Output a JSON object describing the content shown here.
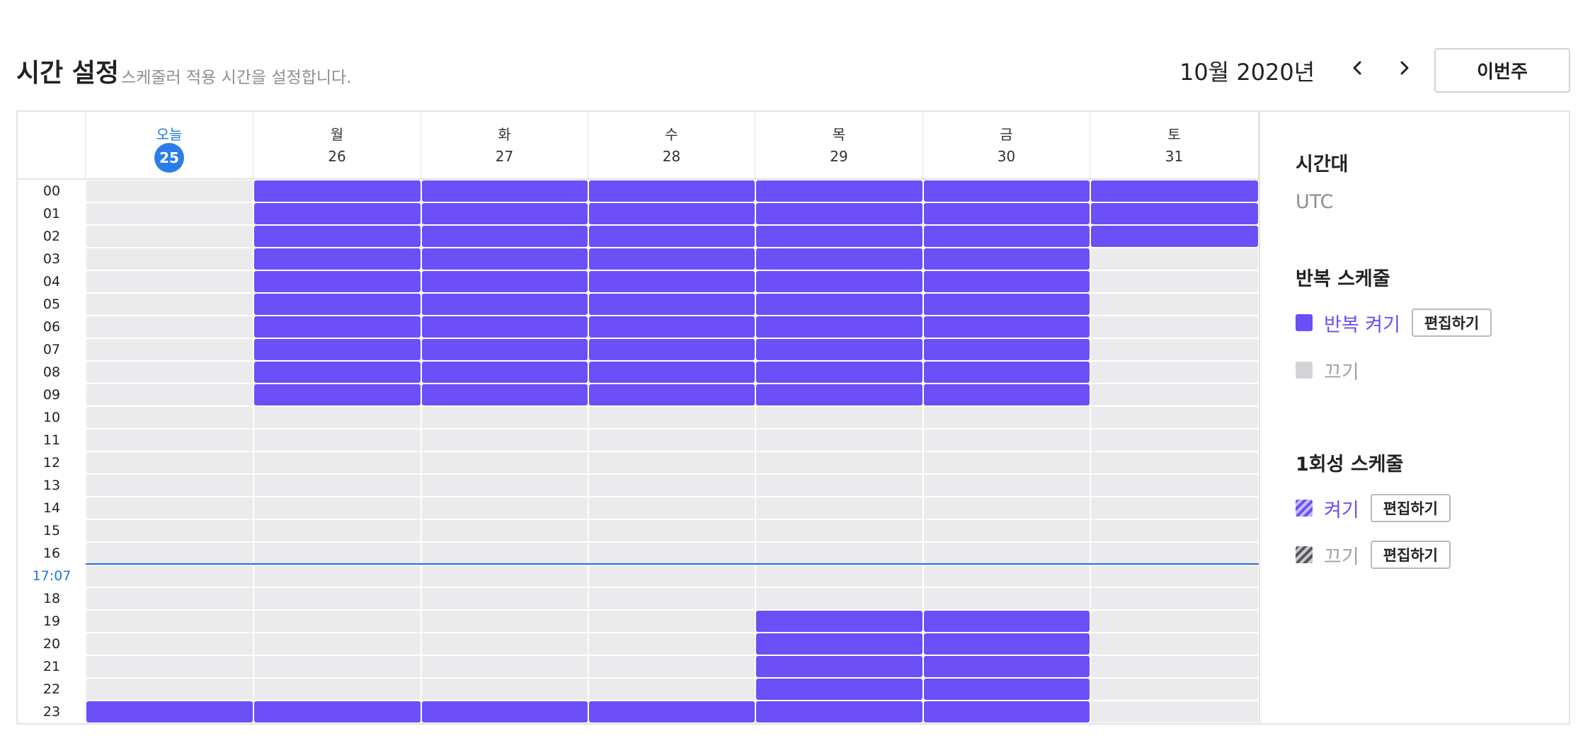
{
  "header": {
    "title": "시간 설정",
    "subtitle": "스케줄러 적용 시간을 설정합니다.",
    "month": "10월 2020년",
    "this_week_label": "이번주",
    "prev_icon": "chevron-left-icon",
    "next_icon": "chevron-right-icon"
  },
  "calendar": {
    "days": [
      {
        "name": "오늘",
        "num": "25",
        "today": true
      },
      {
        "name": "월",
        "num": "26",
        "today": false
      },
      {
        "name": "화",
        "num": "27",
        "today": false
      },
      {
        "name": "수",
        "num": "28",
        "today": false
      },
      {
        "name": "목",
        "num": "29",
        "today": false
      },
      {
        "name": "금",
        "num": "30",
        "today": false
      },
      {
        "name": "토",
        "num": "31",
        "today": false
      }
    ],
    "hours": [
      "00",
      "01",
      "02",
      "03",
      "04",
      "05",
      "06",
      "07",
      "08",
      "09",
      "10",
      "11",
      "12",
      "13",
      "14",
      "15",
      "16",
      "17:07",
      "18",
      "19",
      "20",
      "21",
      "22",
      "23"
    ],
    "current_time": "17:07",
    "current_time_row": 17,
    "on_hours": [
      [
        23
      ],
      [
        0,
        1,
        2,
        3,
        4,
        5,
        6,
        7,
        8,
        9,
        23
      ],
      [
        0,
        1,
        2,
        3,
        4,
        5,
        6,
        7,
        8,
        9,
        23
      ],
      [
        0,
        1,
        2,
        3,
        4,
        5,
        6,
        7,
        8,
        9,
        23
      ],
      [
        0,
        1,
        2,
        3,
        4,
        5,
        6,
        7,
        8,
        9,
        19,
        20,
        21,
        22,
        23
      ],
      [
        0,
        1,
        2,
        3,
        4,
        5,
        6,
        7,
        8,
        9,
        19,
        20,
        21,
        22,
        23
      ],
      [
        0,
        1,
        2
      ]
    ]
  },
  "sidebar": {
    "timezone_title": "시간대",
    "timezone_value": "UTC",
    "recurring_title": "반복 스케줄",
    "recurring_on": "반복 켜기",
    "recurring_off": "끄기",
    "once_title": "1회성 스케줄",
    "once_on": "켜기",
    "once_off": "끄기",
    "edit_label": "편집하기"
  },
  "colors": {
    "on": "#6c4ff6",
    "off_cell": "#ebebee",
    "today": "#2b7de9",
    "now_line": "#1f6fe0"
  }
}
